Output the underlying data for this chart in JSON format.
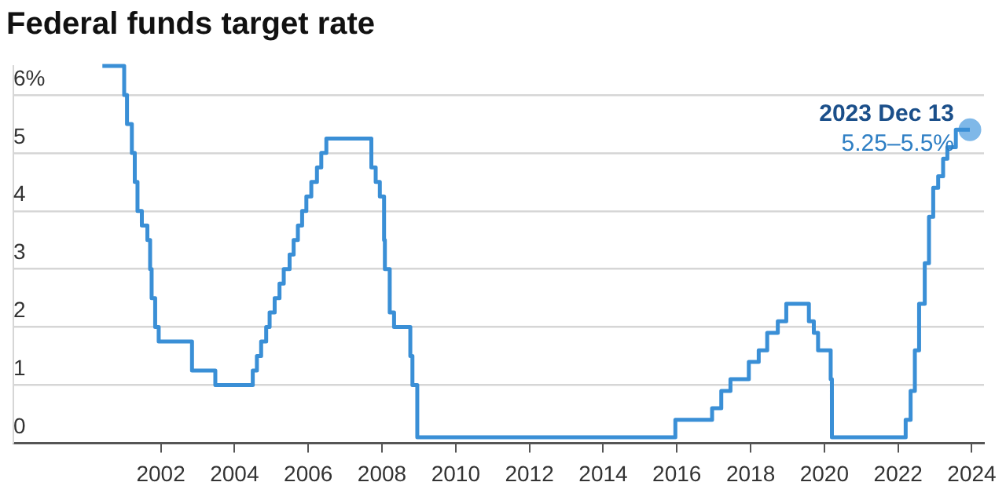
{
  "chart_data": {
    "type": "step",
    "title": "Federal funds target rate",
    "xlim": [
      "1998-01-01",
      "2024-05-01"
    ],
    "xticks": [
      "2002",
      "2004",
      "2006",
      "2008",
      "2010",
      "2012",
      "2014",
      "2016",
      "2018",
      "2020",
      "2022",
      "2024"
    ],
    "ylim": [
      0,
      6.5
    ],
    "yticks": [
      0,
      1,
      2,
      3,
      4,
      5,
      {
        "value": 6,
        "label": "6%"
      }
    ],
    "grid": "y",
    "legend": false,
    "marker": "none",
    "line_style": "solid",
    "series": [
      {
        "color": "#3a8fd6",
        "x": [
          "2000-06-01",
          "2001-01-03",
          "2001-01-31",
          "2001-03-20",
          "2001-04-18",
          "2001-05-15",
          "2001-06-27",
          "2001-08-21",
          "2001-09-17",
          "2001-10-02",
          "2001-11-06",
          "2001-12-11",
          "2002-11-06",
          "2003-06-25",
          "2004-06-30",
          "2004-08-10",
          "2004-09-21",
          "2004-11-10",
          "2004-12-14",
          "2005-02-02",
          "2005-03-22",
          "2005-05-03",
          "2005-06-30",
          "2005-08-09",
          "2005-09-20",
          "2005-11-01",
          "2005-12-13",
          "2006-01-31",
          "2006-03-28",
          "2006-05-10",
          "2006-06-29",
          "2007-09-18",
          "2007-10-31",
          "2007-12-11",
          "2008-01-22",
          "2008-01-30",
          "2008-03-18",
          "2008-04-30",
          "2008-10-08",
          "2008-10-29",
          "2008-12-16",
          "2015-12-17",
          "2016-12-15",
          "2017-03-16",
          "2017-06-15",
          "2017-12-14",
          "2018-03-22",
          "2018-06-14",
          "2018-09-27",
          "2018-12-20",
          "2019-08-01",
          "2019-09-19",
          "2019-10-31",
          "2020-03-04",
          "2020-03-16",
          "2022-03-17",
          "2022-05-05",
          "2022-06-16",
          "2022-07-28",
          "2022-09-22",
          "2022-11-03",
          "2022-12-15",
          "2023-02-02",
          "2023-03-23",
          "2023-05-04",
          "2023-07-27",
          "2023-12-13"
        ],
        "values": [
          6.5,
          6,
          5.5,
          5,
          4.5,
          4,
          3.75,
          3.5,
          3,
          2.5,
          2,
          1.75,
          1.25,
          1,
          1.25,
          1.5,
          1.75,
          2,
          2.25,
          2.5,
          2.75,
          3,
          3.25,
          3.5,
          3.75,
          4,
          4.25,
          4.5,
          4.75,
          5,
          5.25,
          4.75,
          4.5,
          4.25,
          3.5,
          3,
          2.25,
          2,
          1.5,
          1,
          0.1,
          0.4,
          0.6,
          0.9,
          1.1,
          1.4,
          1.6,
          1.9,
          2.1,
          2.4,
          2.1,
          1.9,
          1.6,
          1.1,
          0.1,
          0.4,
          0.9,
          1.6,
          2.4,
          3.1,
          3.9,
          4.4,
          4.6,
          4.9,
          5.1,
          5.4,
          5.4
        ]
      },
      {
        "type": "scatter",
        "marker": "circle",
        "color": "#7fb8e8",
        "x": [
          "2023-12-13"
        ],
        "values": [
          5.4
        ]
      }
    ],
    "annotations": [
      {
        "text": "2023 Dec 13",
        "x": "2023-12-13",
        "y": 5.4
      },
      {
        "text": "5.25–5.5%",
        "x": "2023-12-13",
        "y": 5.4
      }
    ]
  }
}
